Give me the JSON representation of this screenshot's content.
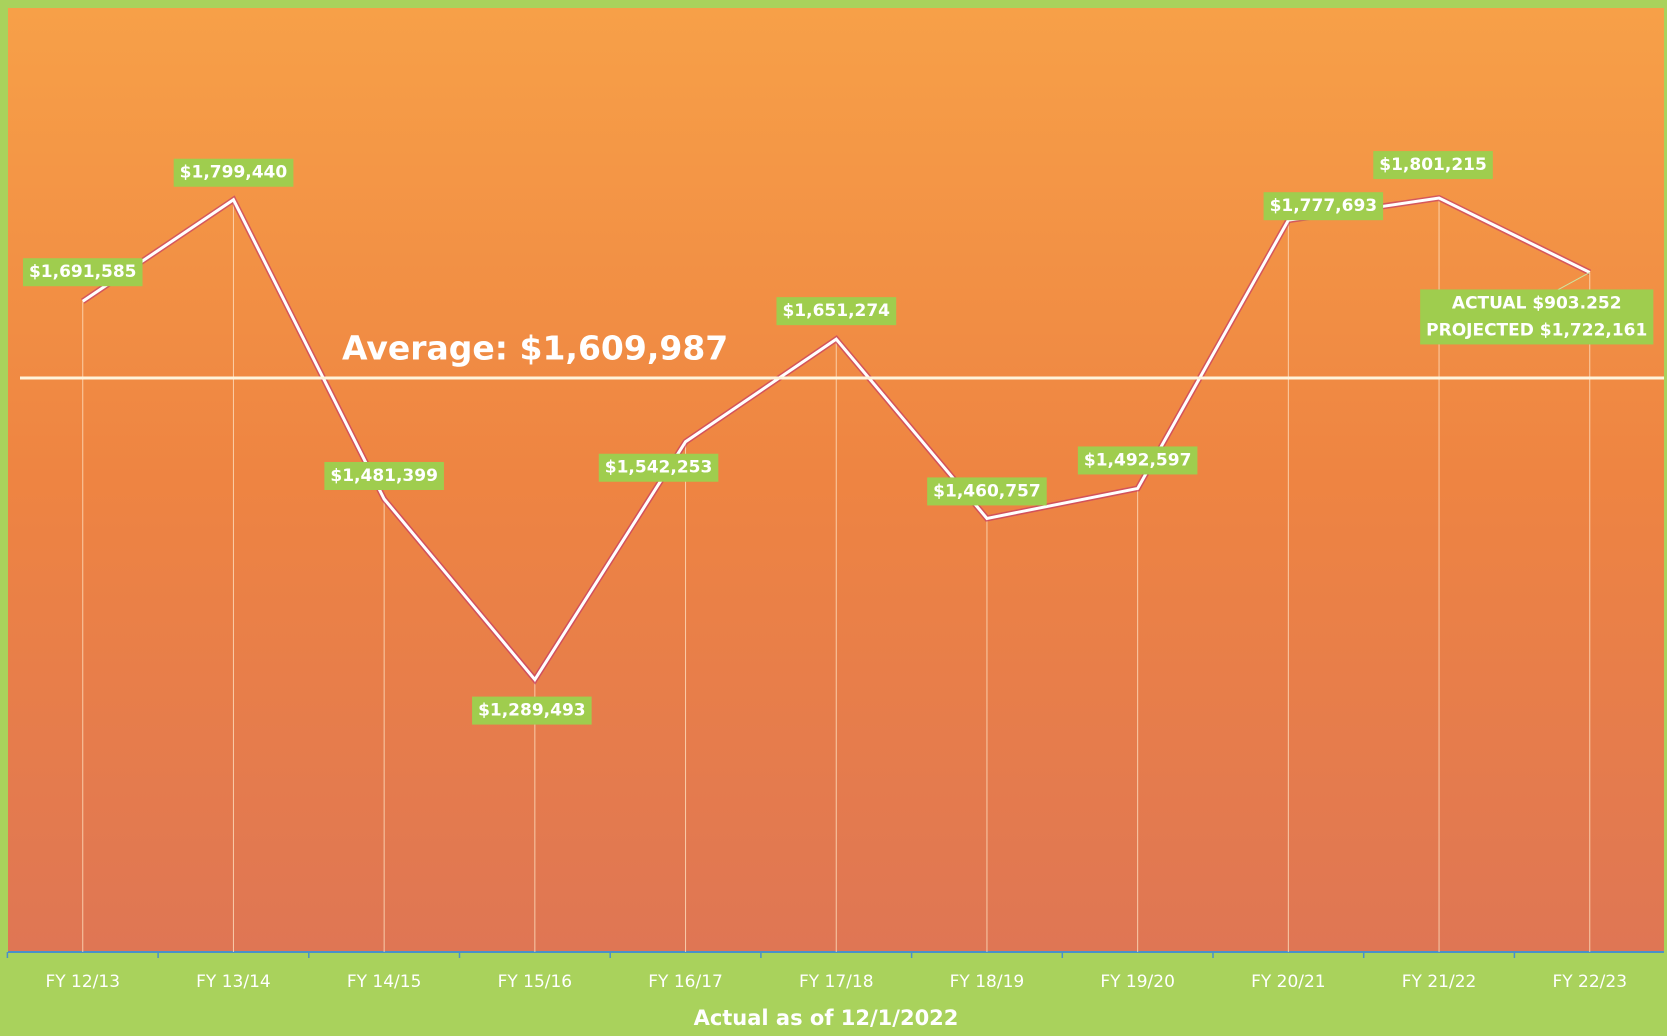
{
  "chart_data": {
    "type": "line",
    "categories": [
      "FY 12/13",
      "FY 13/14",
      "FY 14/15",
      "FY 15/16",
      "FY 16/17",
      "FY 17/18",
      "FY 18/19",
      "FY 19/20",
      "FY 20/21",
      "FY 21/22",
      "FY 22/23"
    ],
    "series": [
      {
        "color": "#ffffff",
        "values": [
          1691585,
          1799440,
          1481399,
          1289493,
          1542253,
          1651274,
          1460757,
          1492597,
          1777693,
          1801215,
          1722161
        ],
        "value_labels": [
          "$1,691,585",
          "$1,799,440",
          "$1,481,399",
          "$1,289,493",
          "$1,542,253",
          "$1,651,274",
          "$1,460,757",
          "$1,492,597",
          "$1,777,693",
          "$1,801,215",
          "PROJECTED $1,722,161"
        ]
      }
    ],
    "annotations": [
      "ACTUAL $903.252"
    ],
    "average": {
      "label": "Average:  $1,609,987",
      "value": 1609987
    },
    "x_label": "Actual as of 12/1/2022",
    "ylim": [
      1000000,
      2000000
    ]
  }
}
